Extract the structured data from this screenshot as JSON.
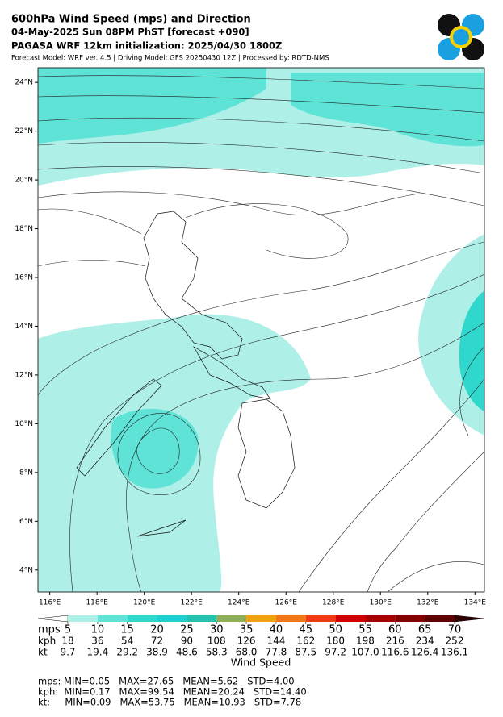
{
  "header": {
    "title": "600hPa Wind Speed (mps) and Direction",
    "valid_time": "04-May-2025 Sun 08PM PhST [forecast +090]",
    "initialization": "PAGASA WRF 12km initialization: 2025/04/30 1800Z",
    "credits": "Forecast Model: WRF ver. 4.5 | Driving Model: GFS 20250430 12Z | Processed by: RDTD-NMS"
  },
  "map": {
    "lon_range": [
      115.5,
      134.4
    ],
    "lat_range": [
      3.1,
      24.6
    ],
    "lon_ticks": [
      {
        "value": 116,
        "label": "116°E"
      },
      {
        "value": 118,
        "label": "118°E"
      },
      {
        "value": 120,
        "label": "120°E"
      },
      {
        "value": 122,
        "label": "122°E"
      },
      {
        "value": 124,
        "label": "124°E"
      },
      {
        "value": 126,
        "label": "126°E"
      },
      {
        "value": 128,
        "label": "128°E"
      },
      {
        "value": 130,
        "label": "130°E"
      },
      {
        "value": 132,
        "label": "132°E"
      },
      {
        "value": 134,
        "label": "134°E"
      }
    ],
    "lat_ticks": [
      {
        "value": 4,
        "label": "4°N"
      },
      {
        "value": 6,
        "label": "6°N"
      },
      {
        "value": 8,
        "label": "8°N"
      },
      {
        "value": 10,
        "label": "10°N"
      },
      {
        "value": 12,
        "label": "12°N"
      },
      {
        "value": 14,
        "label": "14°N"
      },
      {
        "value": 16,
        "label": "16°N"
      },
      {
        "value": 18,
        "label": "18°N"
      },
      {
        "value": 20,
        "label": "20°N"
      },
      {
        "value": 22,
        "label": "22°N"
      },
      {
        "value": 24,
        "label": "24°N"
      }
    ]
  },
  "colorbar": {
    "title": "Wind Speed",
    "colors": [
      "#ffffff",
      "#aef0e8",
      "#5fe3d7",
      "#2fd7cd",
      "#1ccfd0",
      "#24c2ae",
      "#8fae58",
      "#f0a010",
      "#f07818",
      "#f03a10",
      "#d00000",
      "#a80000",
      "#840000",
      "#600000",
      "#300000"
    ],
    "rows": [
      {
        "unit": "mps",
        "ticks": [
          5,
          10,
          15,
          20,
          25,
          30,
          35,
          40,
          45,
          50,
          55,
          60,
          65,
          70
        ]
      },
      {
        "unit": "kph",
        "ticks": [
          18,
          36,
          54,
          72,
          90,
          108,
          126,
          144,
          162,
          180,
          198,
          216,
          234,
          252
        ]
      },
      {
        "unit": "kt",
        "ticks": [
          9.7,
          19.4,
          29.2,
          38.9,
          48.6,
          58.3,
          {
            "value": 68,
            "label": "68.0"
          },
          77.8,
          87.5,
          97.2,
          {
            "value": 107,
            "label": "107.0"
          },
          116.6,
          126.4,
          136.1
        ]
      }
    ]
  },
  "stats": [
    "mps: MIN=0.05   MAX=27.65   MEAN=5.62   STD=4.00",
    "kph:  MIN=0.17   MAX=99.54   MEAN=20.24   STD=14.40",
    "kt:     MIN=0.09   MAX=53.75   MEAN=10.93   STD=7.78"
  ]
}
